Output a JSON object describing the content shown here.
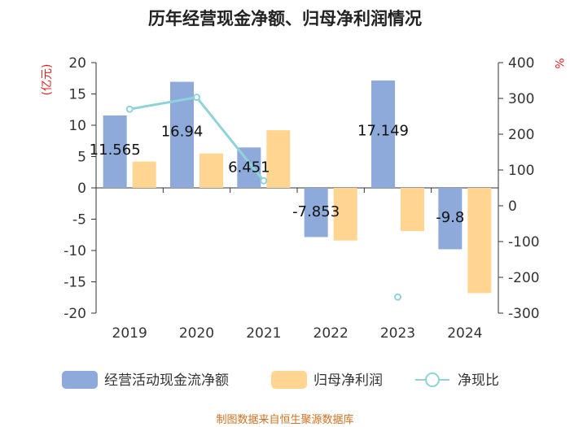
{
  "title": "历年经营现金净额、归母净利润情况",
  "source": "制图数据来自恒生聚源数据库",
  "left_unit": "亿元",
  "right_unit": "%",
  "colors": {
    "cash_flow": "#8eaadb",
    "net_profit": "#ffd591",
    "ratio": "#8fd3d9"
  },
  "chart_data": {
    "type": "bar",
    "categories": [
      "2019",
      "2020",
      "2021",
      "2022",
      "2023",
      "2024"
    ],
    "series": [
      {
        "name": "经营活动现金流净额",
        "axis": "left",
        "values": [
          11.565,
          16.94,
          6.451,
          -7.853,
          17.149,
          -9.8
        ]
      },
      {
        "name": "归母净利润",
        "axis": "left",
        "values": [
          4.2,
          5.5,
          9.2,
          -8.4,
          -6.9,
          -16.8
        ]
      },
      {
        "name": "净现比",
        "axis": "right",
        "type": "line",
        "values": [
          270,
          303,
          70,
          null,
          -255,
          null
        ]
      }
    ],
    "data_labels": [
      "11.565",
      "16.94",
      "6.451",
      "-7.853",
      "17.149",
      "-9.8"
    ],
    "ylim_left": [
      -20,
      20
    ],
    "ylim_right": [
      -300,
      400
    ],
    "yticks_left": [
      "20",
      "15",
      "10",
      "5",
      "0",
      "-5",
      "-10",
      "-15",
      "-20"
    ],
    "yticks_right": [
      "400",
      "300",
      "200",
      "100",
      "0",
      "-100",
      "-200",
      "-300"
    ],
    "legend_position": "bottom",
    "grid": false
  }
}
